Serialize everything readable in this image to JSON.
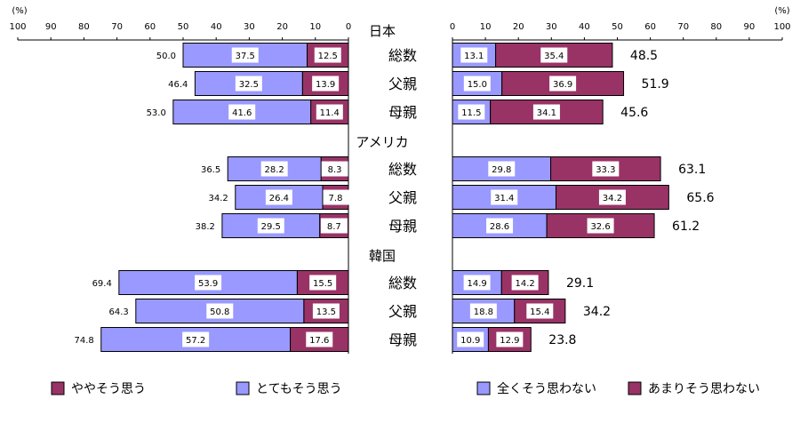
{
  "chart_data": {
    "type": "bar",
    "unit_label": "(%)",
    "left_panel": {
      "xlim": [
        100,
        0
      ],
      "ticks": [
        100,
        90,
        80,
        70,
        60,
        50,
        40,
        30,
        20,
        10,
        0
      ],
      "series": [
        {
          "name": "ややそう思う",
          "color": "#993366"
        },
        {
          "name": "とてもそう思う",
          "color": "#9999ff"
        }
      ]
    },
    "right_panel": {
      "xlim": [
        0,
        100
      ],
      "ticks": [
        0,
        10,
        20,
        30,
        40,
        50,
        60,
        70,
        80,
        90,
        100
      ],
      "series": [
        {
          "name": "全くそう思わない",
          "color": "#9999ff"
        },
        {
          "name": "あまりそう思わない",
          "color": "#993366"
        }
      ]
    },
    "groups": [
      {
        "name": "日本",
        "rows": [
          {
            "label": "総数",
            "left": {
              "total": "50.0",
              "values": [
                12.5,
                37.5
              ]
            },
            "right": {
              "total": "48.5",
              "values": [
                13.1,
                35.4
              ]
            }
          },
          {
            "label": "父親",
            "left": {
              "total": "46.4",
              "values": [
                13.9,
                32.5
              ]
            },
            "right": {
              "total": "51.9",
              "values": [
                15.0,
                36.9
              ]
            }
          },
          {
            "label": "母親",
            "left": {
              "total": "53.0",
              "values": [
                11.4,
                41.6
              ]
            },
            "right": {
              "total": "45.6",
              "values": [
                11.5,
                34.1
              ]
            }
          }
        ]
      },
      {
        "name": "アメリカ",
        "rows": [
          {
            "label": "総数",
            "left": {
              "total": "36.5",
              "values": [
                8.3,
                28.2
              ]
            },
            "right": {
              "total": "63.1",
              "values": [
                29.8,
                33.3
              ]
            }
          },
          {
            "label": "父親",
            "left": {
              "total": "34.2",
              "values": [
                7.8,
                26.4
              ]
            },
            "right": {
              "total": "65.6",
              "values": [
                31.4,
                34.2
              ]
            }
          },
          {
            "label": "母親",
            "left": {
              "total": "38.2",
              "values": [
                8.7,
                29.5
              ]
            },
            "right": {
              "total": "61.2",
              "values": [
                28.6,
                32.6
              ]
            }
          }
        ]
      },
      {
        "name": "韓国",
        "rows": [
          {
            "label": "総数",
            "left": {
              "total": "69.4",
              "values": [
                15.5,
                53.9
              ]
            },
            "right": {
              "total": "29.1",
              "values": [
                14.9,
                14.2
              ]
            }
          },
          {
            "label": "父親",
            "left": {
              "total": "64.3",
              "values": [
                13.5,
                50.8
              ]
            },
            "right": {
              "total": "34.2",
              "values": [
                18.8,
                15.4
              ]
            }
          },
          {
            "label": "母親",
            "left": {
              "total": "74.8",
              "values": [
                17.6,
                57.2
              ]
            },
            "right": {
              "total": "23.8",
              "values": [
                10.9,
                12.9
              ]
            }
          }
        ]
      }
    ]
  }
}
